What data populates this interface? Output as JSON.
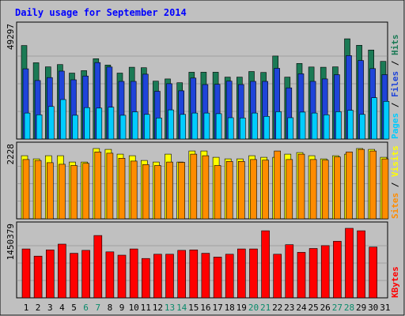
{
  "chart_data": [
    {
      "type": "bar",
      "title": "Daily usage for September 2014",
      "ymax_label": "49297",
      "ylim": [
        0,
        49297
      ],
      "categories": [
        "1",
        "2",
        "3",
        "4",
        "5",
        "6",
        "7",
        "8",
        "9",
        "10",
        "11",
        "12",
        "13",
        "14",
        "15",
        "16",
        "17",
        "18",
        "19",
        "20",
        "21",
        "22",
        "23",
        "24",
        "25",
        "26",
        "27",
        "28",
        "29",
        "30",
        "31"
      ],
      "weekend_days": [
        "6",
        "7",
        "13",
        "14",
        "20",
        "21",
        "27",
        "28"
      ],
      "right_label_parts": [
        "Pages",
        "Files",
        "Hits"
      ],
      "right_label_separator": " / ",
      "series": [
        {
          "name": "Hits",
          "color": "#1b7a55",
          "values": [
            41700,
            34000,
            32200,
            33200,
            29400,
            30500,
            35800,
            33000,
            29400,
            32000,
            31800,
            25800,
            26800,
            25100,
            29800,
            29800,
            29800,
            27600,
            27600,
            30100,
            29700,
            37000,
            27600,
            33700,
            32100,
            32000,
            32200,
            44700,
            41800,
            39700,
            34600
          ]
        },
        {
          "name": "Files",
          "color": "#1f44d9",
          "values": [
            31300,
            26100,
            27400,
            30300,
            26400,
            28100,
            34100,
            32100,
            25700,
            25700,
            28900,
            21300,
            24700,
            21500,
            27200,
            24300,
            24400,
            25800,
            24300,
            25700,
            25700,
            31500,
            22800,
            29100,
            25700,
            26800,
            28700,
            37200,
            35000,
            31400,
            28700
          ]
        },
        {
          "name": "Pages",
          "color": "#00ccff",
          "values": [
            11600,
            10800,
            14500,
            17600,
            10600,
            14000,
            13800,
            14200,
            10600,
            12100,
            11000,
            9400,
            13000,
            11000,
            11600,
            11600,
            11300,
            9500,
            9400,
            11600,
            10100,
            12200,
            9500,
            12000,
            11600,
            10800,
            12200,
            12800,
            11000,
            18400,
            16800
          ]
        }
      ]
    },
    {
      "type": "bar",
      "ymax_label": "2228",
      "ylim": [
        0,
        2228
      ],
      "categories": [
        "1",
        "2",
        "3",
        "4",
        "5",
        "6",
        "7",
        "8",
        "9",
        "10",
        "11",
        "12",
        "13",
        "14",
        "15",
        "16",
        "17",
        "18",
        "19",
        "20",
        "21",
        "22",
        "23",
        "24",
        "25",
        "26",
        "27",
        "28",
        "29",
        "30",
        "31"
      ],
      "right_label_parts": [
        "Sites",
        "Visits"
      ],
      "right_label_separator": " / ",
      "series": [
        {
          "name": "Visits",
          "color": "#ffff00",
          "values": [
            2000,
            1900,
            2000,
            2000,
            1800,
            1800,
            2228,
            2200,
            2050,
            2000,
            1850,
            1800,
            2050,
            1800,
            2150,
            2150,
            1950,
            1900,
            1900,
            2000,
            1950,
            1950,
            2050,
            2100,
            2000,
            1900,
            2000,
            2050,
            2228,
            2200,
            1950
          ]
        },
        {
          "name": "Sites",
          "color": "#ff8c00",
          "values": [
            1880,
            1850,
            1780,
            1730,
            1690,
            1760,
            2120,
            2080,
            1920,
            1830,
            1720,
            1690,
            1800,
            1790,
            2050,
            2000,
            1690,
            1820,
            1820,
            1880,
            1860,
            2150,
            1880,
            2050,
            1880,
            1860,
            1960,
            2120,
            2200,
            2150,
            1900
          ]
        }
      ]
    },
    {
      "type": "bar",
      "ymax_label": "1450379",
      "ylim": [
        0,
        1450379
      ],
      "categories": [
        "1",
        "2",
        "3",
        "4",
        "5",
        "6",
        "7",
        "8",
        "9",
        "10",
        "11",
        "12",
        "13",
        "14",
        "15",
        "16",
        "17",
        "18",
        "19",
        "20",
        "21",
        "22",
        "23",
        "24",
        "25",
        "26",
        "27",
        "28",
        "29",
        "30",
        "31"
      ],
      "right_label_parts": [
        "KBytes"
      ],
      "right_label_separator": "",
      "series": [
        {
          "name": "KBytes",
          "color": "#ff0000",
          "values": [
            1020000,
            870000,
            1000000,
            1120000,
            930000,
            990000,
            1300000,
            960000,
            890000,
            1020000,
            820000,
            910000,
            910000,
            990000,
            1000000,
            930000,
            850000,
            910000,
            1020000,
            1020000,
            1400000,
            910000,
            1110000,
            950000,
            1030000,
            1090000,
            1180000,
            1450379,
            1400000,
            1060000,
            0
          ]
        }
      ]
    }
  ]
}
